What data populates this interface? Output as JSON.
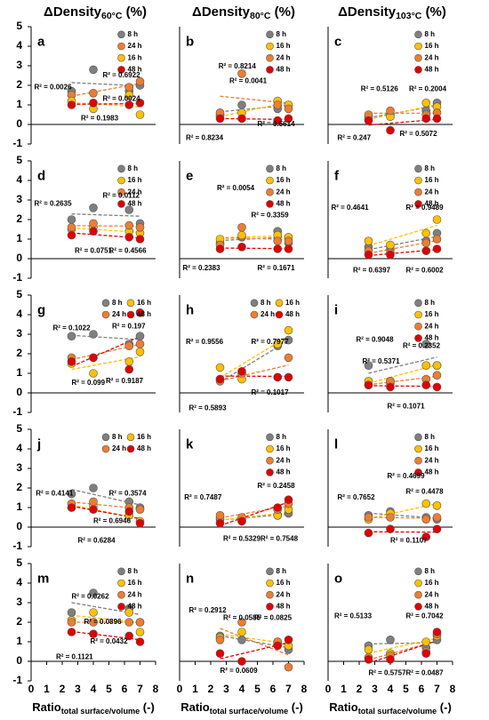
{
  "column_titles": [
    {
      "main": "ΔDensity",
      "sub": "60°C",
      "unit": "(%)"
    },
    {
      "main": "ΔDensity",
      "sub": "80°C",
      "unit": "(%)"
    },
    {
      "main": "ΔDensity",
      "sub": "103°C",
      "unit": "(%)"
    }
  ],
  "chart_data": [
    {
      "type": "scatter",
      "label": "a",
      "xlim": [
        0,
        8
      ],
      "ylim": [
        -1,
        5
      ],
      "yticks": [
        -1,
        0,
        1,
        2,
        3,
        4,
        5
      ],
      "legend_columns": 1,
      "x": [
        2.6,
        4.0,
        6.3,
        7.0
      ],
      "series": [
        {
          "name": "8 h",
          "color": "#7f7f7f",
          "values": [
            1.7,
            2.8,
            1.7,
            2.0
          ]
        },
        {
          "name": "24 h",
          "color": "#ed7d31",
          "values": [
            1.5,
            1.6,
            1.9,
            2.2
          ]
        },
        {
          "name": "16 h",
          "color": "#ffc000",
          "values": [
            1.2,
            0.8,
            1.5,
            0.5
          ]
        },
        {
          "name": "48 h",
          "color": "#e00000",
          "values": [
            1.0,
            1.1,
            1.0,
            1.1
          ]
        }
      ],
      "annotations": [
        "R² = 0.0026",
        "R² = 0.6922",
        "R² = 0.0024",
        "R² = 0.1983"
      ]
    },
    {
      "type": "scatter",
      "label": "b",
      "xlim": [
        0,
        8
      ],
      "ylim": [
        -1,
        5
      ],
      "legend_columns": 1,
      "x": [
        2.6,
        4.0,
        6.3,
        7.0
      ],
      "series": [
        {
          "name": "8 h",
          "color": "#7f7f7f",
          "values": [
            0.5,
            1.0,
            0.8,
            1.0
          ]
        },
        {
          "name": "16 h",
          "color": "#ffc000",
          "values": [
            0.4,
            0.6,
            1.2,
            1.0
          ]
        },
        {
          "name": "24 h",
          "color": "#ed7d31",
          "values": [
            0.6,
            2.6,
            1.0,
            0.8
          ]
        },
        {
          "name": "48 h",
          "color": "#e00000",
          "values": [
            0.3,
            0.3,
            0.2,
            0.3
          ]
        }
      ],
      "annotations": [
        "R² = 0.8214",
        "R² = 0.0041",
        "R² = 0.8234",
        "R² = 0.5614"
      ]
    },
    {
      "type": "scatter",
      "label": "c",
      "xlim": [
        0,
        8
      ],
      "ylim": [
        -1,
        5
      ],
      "legend_columns": 1,
      "x": [
        2.6,
        4.0,
        6.3,
        7.0
      ],
      "series": [
        {
          "name": "8 h",
          "color": "#7f7f7f",
          "values": [
            0.4,
            0.5,
            0.7,
            1.1
          ]
        },
        {
          "name": "16 h",
          "color": "#ffc000",
          "values": [
            0.3,
            0.4,
            1.1,
            0.9
          ]
        },
        {
          "name": "24 h",
          "color": "#ed7d31",
          "values": [
            0.5,
            0.7,
            0.5,
            0.6
          ]
        },
        {
          "name": "48 h",
          "color": "#e00000",
          "values": [
            0.2,
            -0.3,
            0.3,
            0.3
          ]
        }
      ],
      "annotations": [
        "R² = 0.5126",
        "R² = 0.2004",
        "R² = 0.247",
        "R² = 0.5072"
      ]
    },
    {
      "type": "scatter",
      "label": "d",
      "xlim": [
        0,
        8
      ],
      "ylim": [
        -1,
        5
      ],
      "yticks": [
        -1,
        0,
        1,
        2,
        3,
        4,
        5
      ],
      "legend_columns": 1,
      "x": [
        2.6,
        4.0,
        6.3,
        7.0
      ],
      "series": [
        {
          "name": "8 h",
          "color": "#7f7f7f",
          "values": [
            2.0,
            2.6,
            2.5,
            1.8
          ]
        },
        {
          "name": "16 h",
          "color": "#ffc000",
          "values": [
            1.5,
            1.6,
            1.4,
            1.3
          ]
        },
        {
          "name": "24 h",
          "color": "#ed7d31",
          "values": [
            1.6,
            1.8,
            1.7,
            1.6
          ]
        },
        {
          "name": "48 h",
          "color": "#e00000",
          "values": [
            1.2,
            1.4,
            1.1,
            1.0
          ]
        }
      ],
      "annotations": [
        "R² = 0.2635",
        "R² = 0.0112",
        "R² = 0.0751",
        "R² = 0.4566"
      ]
    },
    {
      "type": "scatter",
      "label": "e",
      "xlim": [
        0,
        8
      ],
      "ylim": [
        -1,
        5
      ],
      "legend_columns": 1,
      "x": [
        2.6,
        4.0,
        6.3,
        7.0
      ],
      "series": [
        {
          "name": "8 h",
          "color": "#7f7f7f",
          "values": [
            0.8,
            1.1,
            1.4,
            0.8
          ]
        },
        {
          "name": "16 h",
          "color": "#ffc000",
          "values": [
            1.0,
            1.2,
            1.2,
            1.1
          ]
        },
        {
          "name": "24 h",
          "color": "#ed7d31",
          "values": [
            0.7,
            1.6,
            0.9,
            0.9
          ]
        },
        {
          "name": "48 h",
          "color": "#e00000",
          "values": [
            0.5,
            0.6,
            0.5,
            0.5
          ]
        }
      ],
      "annotations": [
        "R² = 0.0054",
        "R² = 0.3359",
        "R² = 0.2383",
        "R² = 0.1671"
      ]
    },
    {
      "type": "scatter",
      "label": "f",
      "xlim": [
        0,
        8
      ],
      "ylim": [
        -1,
        5
      ],
      "legend_columns": 1,
      "x": [
        2.6,
        4.0,
        6.3,
        7.0
      ],
      "series": [
        {
          "name": "8 h",
          "color": "#7f7f7f",
          "values": [
            0.6,
            0.5,
            0.9,
            1.3
          ]
        },
        {
          "name": "16 h",
          "color": "#ffc000",
          "values": [
            0.9,
            0.7,
            1.3,
            2.0
          ]
        },
        {
          "name": "24 h",
          "color": "#ed7d31",
          "values": [
            0.4,
            0.3,
            0.8,
            1.0
          ]
        },
        {
          "name": "48 h",
          "color": "#e00000",
          "values": [
            0.2,
            0.2,
            0.4,
            0.5
          ]
        }
      ],
      "annotations": [
        "R² = 0.4641",
        "R² = 0.9489",
        "R² = 0.6397",
        "R² = 0.6002"
      ]
    },
    {
      "type": "scatter",
      "label": "g",
      "xlim": [
        0,
        8
      ],
      "ylim": [
        -1,
        5
      ],
      "yticks": [
        -1,
        0,
        1,
        2,
        3,
        4,
        5
      ],
      "legend_columns": 2,
      "x": [
        2.6,
        4.0,
        6.3,
        7.0
      ],
      "series": [
        {
          "name": "8 h",
          "color": "#7f7f7f",
          "values": [
            2.9,
            3.0,
            2.5,
            2.9
          ]
        },
        {
          "name": "16 h",
          "color": "#ffc000",
          "values": [
            1.5,
            1.0,
            1.6,
            2.1
          ]
        },
        {
          "name": "24 h",
          "color": "#ed7d31",
          "values": [
            1.8,
            1.8,
            2.4,
            2.5
          ]
        },
        {
          "name": "48 h",
          "color": "#e00000",
          "values": [
            1.6,
            1.8,
            1.2,
            4.1
          ]
        }
      ],
      "annotations": [
        "R² = 0.1022",
        "R² = 0.197",
        "R² = 0.099",
        "R² = 0.9187"
      ]
    },
    {
      "type": "scatter",
      "label": "h",
      "xlim": [
        0,
        8
      ],
      "ylim": [
        -1,
        5
      ],
      "legend_columns": 2,
      "x": [
        2.6,
        4.0,
        6.3,
        7.0
      ],
      "series": [
        {
          "name": "8 h",
          "color": "#7f7f7f",
          "values": [
            0.7,
            1.0,
            2.4,
            2.7
          ]
        },
        {
          "name": "16 h",
          "color": "#ffc000",
          "values": [
            1.3,
            0.7,
            2.5,
            3.2
          ]
        },
        {
          "name": "24 h",
          "color": "#ed7d31",
          "values": [
            0.6,
            1.0,
            0.8,
            1.8
          ]
        },
        {
          "name": "48 h",
          "color": "#e00000",
          "values": [
            0.7,
            1.1,
            0.8,
            0.8
          ]
        }
      ],
      "annotations": [
        "R² = 0.9556",
        "R² = 0.7977",
        "R² = 0.5893",
        "R² = 0.1017"
      ]
    },
    {
      "type": "scatter",
      "label": "i",
      "xlim": [
        0,
        8
      ],
      "ylim": [
        -1,
        5
      ],
      "legend_columns": 1,
      "x": [
        2.6,
        4.0,
        6.3,
        7.0
      ],
      "series": [
        {
          "name": "8 h",
          "color": "#7f7f7f",
          "values": [
            1.4,
            0.5,
            2.5,
            1.4
          ]
        },
        {
          "name": "16 h",
          "color": "#ffc000",
          "values": [
            0.6,
            0.6,
            1.4,
            1.4
          ]
        },
        {
          "name": "24 h",
          "color": "#ed7d31",
          "values": [
            0.4,
            0.6,
            0.7,
            0.9
          ]
        },
        {
          "name": "48 h",
          "color": "#e00000",
          "values": [
            0.4,
            0.3,
            0.4,
            0.3
          ]
        }
      ],
      "annotations": [
        "R² = 0.9048",
        "R² = 0.2352",
        "R² = 0.5371",
        "R² = 0.1071"
      ]
    },
    {
      "type": "scatter",
      "label": "j",
      "xlim": [
        0,
        8
      ],
      "ylim": [
        -1,
        5
      ],
      "yticks": [
        -1,
        0,
        1,
        2,
        3,
        4,
        5
      ],
      "legend_columns": 2,
      "x": [
        2.6,
        4.0,
        6.3,
        7.0
      ],
      "series": [
        {
          "name": "8 h",
          "color": "#7f7f7f",
          "values": [
            1.7,
            2.0,
            1.3,
            1.0
          ]
        },
        {
          "name": "16 h",
          "color": "#ffc000",
          "values": [
            1.0,
            1.1,
            0.6,
            0.3
          ]
        },
        {
          "name": "24 h",
          "color": "#ed7d31",
          "values": [
            1.2,
            1.3,
            1.0,
            0.9
          ]
        },
        {
          "name": "48 h",
          "color": "#e00000",
          "values": [
            1.0,
            0.9,
            0.8,
            0.2
          ]
        }
      ],
      "annotations": [
        "R² = 0.4141",
        "R² = 0.3574",
        "R² = 0.6946",
        "R² = 0.6284"
      ]
    },
    {
      "type": "scatter",
      "label": "k",
      "xlim": [
        0,
        8
      ],
      "ylim": [
        -1,
        5
      ],
      "legend_columns": 1,
      "x": [
        2.6,
        4.0,
        6.3,
        7.0
      ],
      "series": [
        {
          "name": "8 h",
          "color": "#7f7f7f",
          "values": [
            0.4,
            0.4,
            0.6,
            0.7
          ]
        },
        {
          "name": "16 h",
          "color": "#ffc000",
          "values": [
            0.5,
            0.3,
            0.6,
            0.9
          ]
        },
        {
          "name": "24 h",
          "color": "#ed7d31",
          "values": [
            0.6,
            0.5,
            0.9,
            1.2
          ]
        },
        {
          "name": "48 h",
          "color": "#e00000",
          "values": [
            0.2,
            0.3,
            1.0,
            1.4
          ]
        }
      ],
      "annotations": [
        "R² = 0.7487",
        "R² = 0.2458",
        "R² = 0.5329",
        "R² = 0.7548"
      ]
    },
    {
      "type": "scatter",
      "label": "l",
      "xlim": [
        0,
        8
      ],
      "ylim": [
        -1,
        5
      ],
      "legend_columns": 1,
      "x": [
        2.6,
        4.0,
        6.3,
        7.0
      ],
      "series": [
        {
          "name": "8 h",
          "color": "#7f7f7f",
          "values": [
            0.6,
            0.8,
            0.5,
            0.4
          ]
        },
        {
          "name": "16 h",
          "color": "#ffc000",
          "values": [
            0.4,
            0.7,
            1.2,
            1.1
          ]
        },
        {
          "name": "24 h",
          "color": "#ed7d31",
          "values": [
            0.5,
            0.5,
            0.4,
            0.5
          ]
        },
        {
          "name": "48 h",
          "color": "#e00000",
          "values": [
            -0.3,
            -0.1,
            -0.5,
            -0.1
          ]
        }
      ],
      "annotations": [
        "R² = 0.4699",
        "R² = 0.4478",
        "R² = 0.7652",
        "R² = 0.1107"
      ]
    },
    {
      "type": "scatter",
      "label": "m",
      "xlim": [
        0,
        8
      ],
      "ylim": [
        -1,
        5
      ],
      "yticks": [
        -1,
        0,
        1,
        2,
        3,
        4,
        5
      ],
      "xticks": [
        0,
        1,
        2,
        3,
        4,
        5,
        6,
        7,
        8
      ],
      "x_label": {
        "main": "Ratio",
        "sub": "total surface/volume",
        "unit": "(-)"
      },
      "legend_columns": 1,
      "x": [
        2.6,
        4.0,
        6.3,
        7.0
      ],
      "series": [
        {
          "name": "8 h",
          "color": "#7f7f7f",
          "values": [
            2.5,
            3.5,
            2.7,
            2.0
          ]
        },
        {
          "name": "16 h",
          "color": "#ffc000",
          "values": [
            2.1,
            2.5,
            2.5,
            1.5
          ]
        },
        {
          "name": "24 h",
          "color": "#ed7d31",
          "values": [
            2.0,
            2.0,
            2.0,
            2.0
          ]
        },
        {
          "name": "48 h",
          "color": "#e00000",
          "values": [
            1.5,
            1.4,
            1.3,
            1.0
          ]
        }
      ],
      "annotations": [
        "R² = 0.0262",
        "R² = 0.0896",
        "R² = 0.0432",
        "R² = 0.1121"
      ]
    },
    {
      "type": "scatter",
      "label": "n",
      "xlim": [
        0,
        8
      ],
      "ylim": [
        -1,
        5
      ],
      "xticks": [
        0,
        1,
        2,
        3,
        4,
        5,
        6,
        7,
        8
      ],
      "x_label": {
        "main": "Ratio",
        "sub": "total surface/volume",
        "unit": "(-)"
      },
      "legend_columns": 1,
      "x": [
        2.6,
        4.0,
        6.3,
        7.0
      ],
      "series": [
        {
          "name": "8 h",
          "color": "#7f7f7f",
          "values": [
            1.3,
            1.1,
            0.9,
            0.6
          ]
        },
        {
          "name": "16 h",
          "color": "#ffc000",
          "values": [
            1.2,
            1.5,
            1.0,
            0.8
          ]
        },
        {
          "name": "24 h",
          "color": "#ed7d31",
          "values": [
            1.1,
            2.0,
            1.0,
            -0.3
          ]
        },
        {
          "name": "48 h",
          "color": "#e00000",
          "values": [
            0.4,
            0.0,
            0.8,
            1.1
          ]
        }
      ],
      "annotations": [
        "R² = 0.2912",
        "R² = 0.0585",
        "R² = 0.0825",
        "R² = 0.0609"
      ]
    },
    {
      "type": "scatter",
      "label": "o",
      "xlim": [
        0,
        8
      ],
      "ylim": [
        -1,
        5
      ],
      "xticks": [
        0,
        1,
        2,
        3,
        4,
        5,
        6,
        7,
        8
      ],
      "x_label": {
        "main": "Ratio",
        "sub": "total surface/volume",
        "unit": "(-)"
      },
      "legend_columns": 1,
      "x": [
        2.6,
        4.0,
        6.3,
        7.0
      ],
      "series": [
        {
          "name": "8 h",
          "color": "#7f7f7f",
          "values": [
            0.8,
            1.1,
            0.7,
            1.1
          ]
        },
        {
          "name": "16 h",
          "color": "#ffc000",
          "values": [
            0.6,
            0.4,
            1.0,
            1.3
          ]
        },
        {
          "name": "24 h",
          "color": "#ed7d31",
          "values": [
            0.2,
            0.3,
            0.5,
            1.4
          ]
        },
        {
          "name": "48 h",
          "color": "#e00000",
          "values": [
            0.1,
            0.1,
            0.4,
            1.5
          ]
        }
      ],
      "annotations": [
        "R² = 0.5133",
        "R² = 0.7042",
        "R² = 0.5757",
        "R² = 0.0487"
      ]
    }
  ]
}
